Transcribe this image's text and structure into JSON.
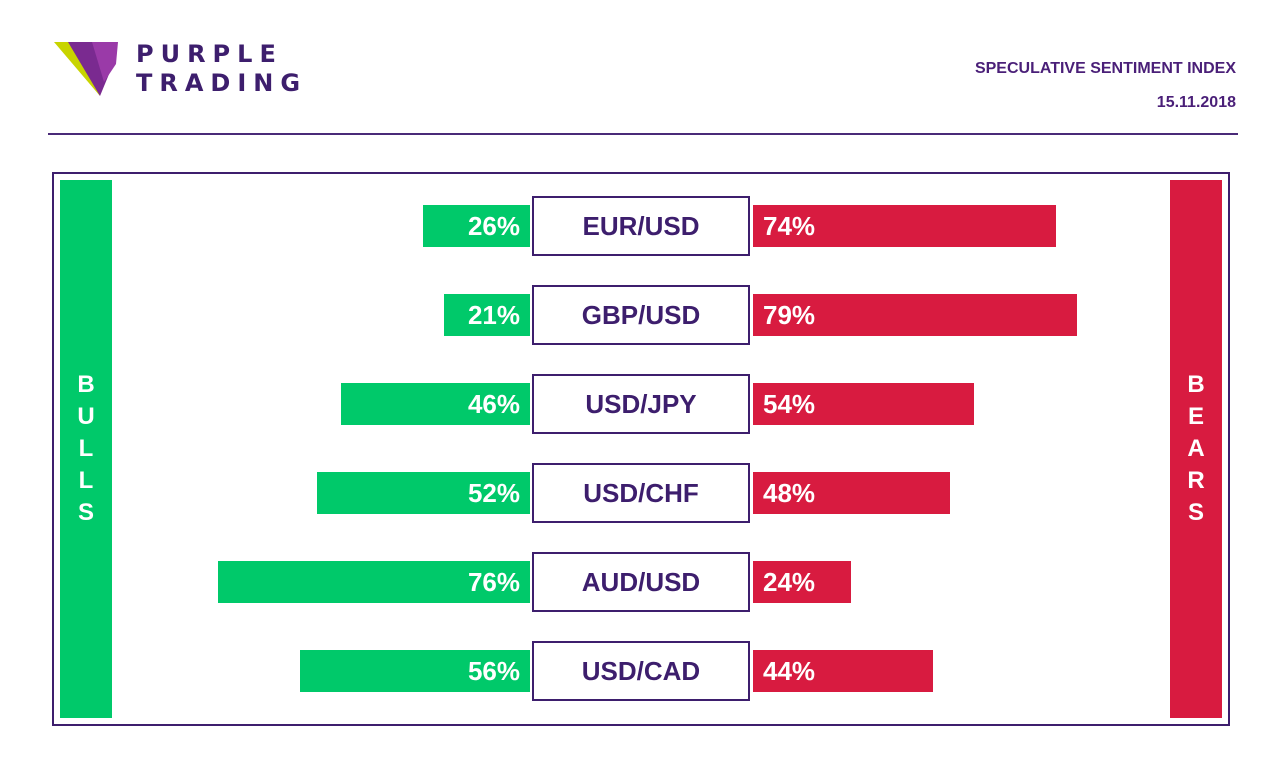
{
  "brand": {
    "line1": "PURPLE",
    "line2": "TRADING"
  },
  "header": {
    "title": "SPECULATIVE SENTIMENT INDEX",
    "date": "15.11.2018"
  },
  "colors": {
    "bull": "#00c96a",
    "bear": "#d81b40",
    "brand": "#3d1e6d"
  },
  "chart_data": {
    "type": "bar",
    "categories": [
      "EUR/USD",
      "GBP/USD",
      "USD/JPY",
      "USD/CHF",
      "AUD/USD",
      "USD/CAD"
    ],
    "series": [
      {
        "name": "BULLS",
        "values": [
          26,
          21,
          46,
          52,
          76,
          56
        ]
      },
      {
        "name": "BEARS",
        "values": [
          74,
          79,
          54,
          48,
          24,
          44
        ]
      }
    ],
    "labels": {
      "bulls": [
        "26%",
        "21%",
        "46%",
        "52%",
        "76%",
        "56%"
      ],
      "bears": [
        "74%",
        "79%",
        "54%",
        "48%",
        "24%",
        "44%"
      ]
    },
    "side_labels": {
      "left": "BULLS",
      "right": "BEARS"
    }
  }
}
